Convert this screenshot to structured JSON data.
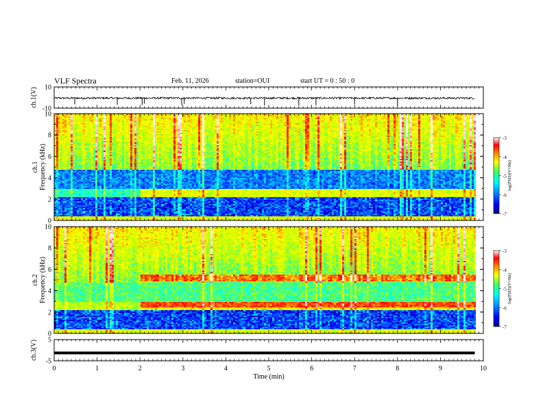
{
  "header": {
    "title": "VLF Spectra",
    "date": "Feb. 11, 2026",
    "station": "station=OUI",
    "start_ut": "start UT =  0 : 50 : 0"
  },
  "chart_data": [
    {
      "type": "line",
      "panel": "ch1-waveform",
      "ylabel": "ch.1(V)",
      "ylim": [
        -10,
        10
      ],
      "yticks": [
        -10,
        10
      ],
      "x_unit": "min",
      "xlim": [
        0,
        10
      ],
      "description_of_values": "noisy waveform near -0.5 V with sparse negative spikes",
      "baseline": -0.5,
      "spikes_min": [
        0.48,
        1.47,
        2.05,
        2.1,
        2.97,
        3.03,
        4.58,
        4.9,
        5.7,
        6.1,
        7.0,
        8.0
      ]
    },
    {
      "type": "heatmap",
      "panel": "ch1-spectrogram",
      "ylabel": [
        "ch.1",
        "Frequency (kHz)"
      ],
      "ylim": [
        0,
        10
      ],
      "yticks": [
        0,
        2,
        4,
        6,
        8,
        10
      ],
      "xlim": [
        0,
        10
      ],
      "xlim_data": [
        0,
        9.8
      ],
      "colorbar": {
        "label": "log(PSD)(V²/Hz)",
        "range": [
          -7,
          -3
        ],
        "ticks": [
          "-3",
          "-4",
          "-5",
          "-6",
          "-7"
        ]
      }
    },
    {
      "type": "heatmap",
      "panel": "ch2-spectrogram",
      "ylabel": [
        "ch.2",
        "Frequency (kHz)"
      ],
      "ylim": [
        0,
        10
      ],
      "yticks": [
        0,
        2,
        4,
        6,
        8,
        10
      ],
      "xlim": [
        0,
        10
      ],
      "xlim_data": [
        0,
        9.8
      ],
      "bands_khz_after_2min": [
        5.2,
        2.7
      ],
      "colorbar": {
        "label": "log(PSD)(V²/Hz)",
        "range": [
          -7,
          -3
        ],
        "ticks": [
          "-3",
          "-4",
          "-5",
          "-6",
          "-7"
        ]
      }
    },
    {
      "type": "line",
      "panel": "ch3-waveform",
      "ylabel": "ch.3(V)",
      "ylim": [
        -5,
        5
      ],
      "yticks": [
        -5,
        5
      ],
      "xlim": [
        0,
        10
      ],
      "description_of_values": "constant thick trace",
      "baseline": 0
    }
  ],
  "xaxis": {
    "label": "Time (min)",
    "ticks": [
      "0",
      "1",
      "2",
      "3",
      "4",
      "5",
      "6",
      "7",
      "8",
      "9",
      "10"
    ]
  },
  "colors": {
    "colormap": [
      "#00007f",
      "#0000ff",
      "#0080ff",
      "#00ffff",
      "#40ff80",
      "#c0ff00",
      "#ffff00",
      "#ff8000",
      "#ff0000",
      "#ffc0c0",
      "#ffffff"
    ],
    "trace": "#000000"
  }
}
